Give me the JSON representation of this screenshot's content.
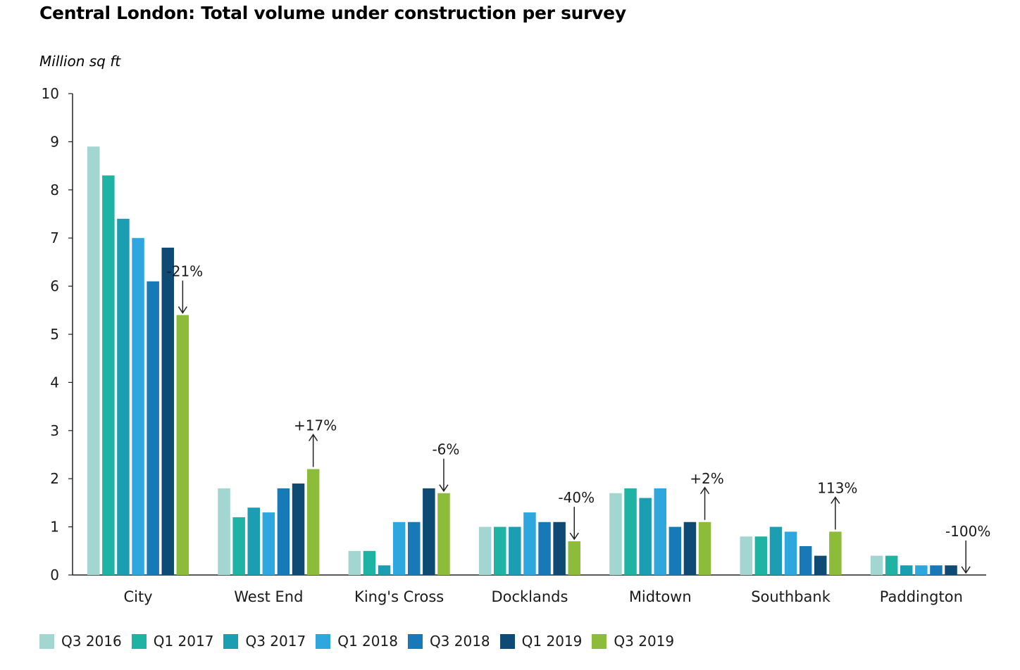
{
  "chart_data": {
    "type": "bar",
    "title": "Central London: Total volume under construction per survey",
    "ylabel": "Million sq ft",
    "xlabel": "",
    "ylim": [
      0,
      10
    ],
    "yticks": [
      "0",
      "1",
      "2",
      "3",
      "4",
      "5",
      "6",
      "7",
      "8",
      "9",
      "10"
    ],
    "categories": [
      "City",
      "West End",
      "King's Cross",
      "Docklands",
      "Midtown",
      "Southbank",
      "Paddington"
    ],
    "series": [
      {
        "name": "Q3 2016",
        "color": "#a3d6d1",
        "values": [
          8.9,
          1.8,
          0.5,
          1.0,
          1.7,
          0.8,
          0.4
        ]
      },
      {
        "name": "Q1 2017",
        "color": "#1fb3a4",
        "values": [
          8.3,
          1.2,
          0.5,
          1.0,
          1.8,
          0.8,
          0.4
        ]
      },
      {
        "name": "Q3 2017",
        "color": "#1b9db2",
        "values": [
          7.4,
          1.4,
          0.2,
          1.0,
          1.6,
          1.0,
          0.2
        ]
      },
      {
        "name": "Q1 2018",
        "color": "#2ea7de",
        "values": [
          7.0,
          1.3,
          1.1,
          1.3,
          1.8,
          0.9,
          0.2
        ]
      },
      {
        "name": "Q3 2018",
        "color": "#1779b8",
        "values": [
          6.1,
          1.8,
          1.1,
          1.1,
          1.0,
          0.6,
          0.2
        ]
      },
      {
        "name": "Q1 2019",
        "color": "#0d4a74",
        "values": [
          6.8,
          1.9,
          1.8,
          1.1,
          1.1,
          0.4,
          0.2
        ]
      },
      {
        "name": "Q3 2019",
        "color": "#8dbb3a",
        "values": [
          5.4,
          2.2,
          1.7,
          0.7,
          1.1,
          0.9,
          0.0
        ]
      }
    ],
    "annotations": [
      {
        "category": "City",
        "label": "-21%",
        "direction": "down"
      },
      {
        "category": "West End",
        "label": "+17%",
        "direction": "up"
      },
      {
        "category": "King's Cross",
        "label": "-6%",
        "direction": "down"
      },
      {
        "category": "Docklands",
        "label": "-40%",
        "direction": "down"
      },
      {
        "category": "Midtown",
        "label": "+2%",
        "direction": "up"
      },
      {
        "category": "Southbank",
        "label": "113%",
        "direction": "up"
      },
      {
        "category": "Paddington",
        "label": "-100%",
        "direction": "down"
      }
    ],
    "grid": false,
    "legend_position": "bottom"
  }
}
